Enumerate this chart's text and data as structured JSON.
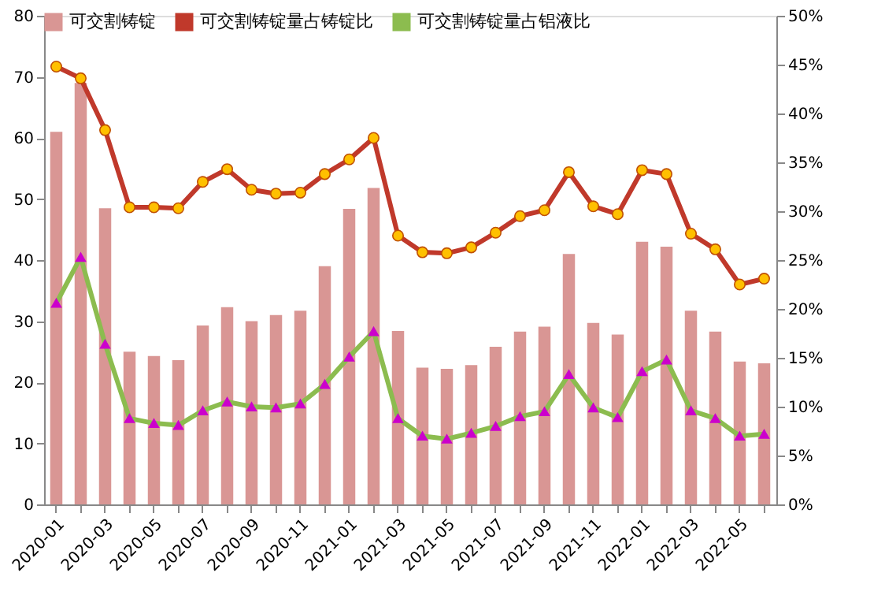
{
  "chart_data": {
    "type": "bar",
    "categories": [
      "2020-01",
      null,
      "2020-03",
      null,
      "2020-05",
      null,
      "2020-07",
      null,
      "2020-09",
      null,
      "2020-11",
      null,
      "2021-01",
      null,
      "2021-03",
      null,
      "2021-05",
      null,
      "2021-07",
      null,
      "2021-09",
      null,
      "2021-11",
      null,
      "2022-01",
      null,
      "2022-03",
      null,
      "2022-05",
      null
    ],
    "series": [
      {
        "name": "可交割铸锭",
        "type": "bar",
        "color": "#d99694",
        "values": [
          61,
          69,
          48.5,
          25,
          24.3,
          23.6,
          29.3,
          32.3,
          30,
          31,
          31.7,
          39,
          48.4,
          51.8,
          28.4,
          22.4,
          22.2,
          22.8,
          25.8,
          28.3,
          29.1,
          41.0,
          29.7,
          27.8,
          43.0,
          42.2,
          31.7,
          28.3,
          23.4,
          23.1
        ]
      },
      {
        "name": "可交割铸锭量占铸锭比",
        "type": "line",
        "axis": "y2",
        "marker": "circle",
        "color": "#c0392b",
        "values": [
          44.8,
          43.6,
          38.3,
          30.4,
          30.4,
          30.3,
          33.0,
          34.3,
          32.2,
          31.8,
          31.9,
          33.8,
          35.3,
          37.5,
          27.5,
          25.8,
          25.7,
          26.3,
          27.8,
          29.5,
          30.1,
          34.0,
          30.5,
          29.7,
          34.2,
          33.8,
          27.7,
          26.1,
          22.5,
          23.1
        ]
      },
      {
        "name": "可交割铸锭量占铝液比",
        "type": "line",
        "axis": "y2",
        "marker": "triangle",
        "color": "#8cbc4f",
        "values": [
          20.6,
          25.3,
          16.4,
          8.8,
          8.3,
          8.1,
          9.6,
          10.5,
          10.0,
          9.9,
          10.3,
          12.3,
          15.1,
          17.7,
          8.8,
          7.0,
          6.7,
          7.3,
          8.0,
          9.0,
          9.5,
          13.3,
          9.9,
          8.9,
          13.6,
          14.8,
          9.6,
          8.8,
          7.0,
          7.2
        ]
      }
    ],
    "ylim": [
      0,
      80
    ],
    "yticks": [
      0,
      10,
      20,
      30,
      40,
      50,
      60,
      70,
      80
    ],
    "y2lim": [
      0,
      50
    ],
    "y2ticks": [
      {
        "value": 0,
        "label": "0%"
      },
      {
        "value": 5,
        "label": "5%"
      },
      {
        "value": 10,
        "label": "10%"
      },
      {
        "value": 15,
        "label": "15%"
      },
      {
        "value": 20,
        "label": "20%"
      },
      {
        "value": 25,
        "label": "25%"
      },
      {
        "value": 30,
        "label": "30%"
      },
      {
        "value": 35,
        "label": "35%"
      },
      {
        "value": 40,
        "label": "40%"
      },
      {
        "value": 45,
        "label": "45%"
      },
      {
        "value": 50,
        "label": "50%"
      }
    ],
    "grid": false,
    "legend": "top"
  }
}
